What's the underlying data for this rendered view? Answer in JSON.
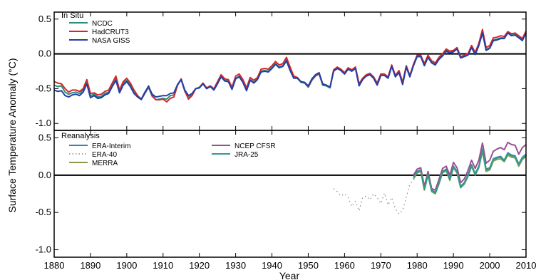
{
  "chart_data": {
    "type": "line",
    "xlabel": "Year",
    "ylabel": "Surface Temperature Anomaly (°C)",
    "xlim": [
      1880,
      2010
    ],
    "x_ticks": [
      1880,
      1890,
      1900,
      1910,
      1920,
      1930,
      1940,
      1950,
      1960,
      1970,
      1980,
      1990,
      2000,
      2010
    ],
    "x_tick_labels": [
      "1880",
      "1890",
      "1900",
      "1910",
      "1920",
      "1930",
      "1940",
      "1950",
      "1960",
      "1970",
      "1980",
      "1990",
      "2000",
      "2010"
    ],
    "panels": [
      {
        "title": "In Situ",
        "ylim": [
          -1.1,
          0.6
        ],
        "y_ticks": [
          -1.0,
          -0.5,
          0.0,
          0.5
        ],
        "y_tick_labels": [
          "-1.0",
          "-0.5",
          "0.0",
          "0.5"
        ],
        "legend_position": "top-left",
        "series": [
          {
            "name": "NCDC",
            "color": "#2a8f7a",
            "start_year": 1880,
            "values": [
              -0.45,
              -0.47,
              -0.46,
              -0.55,
              -0.58,
              -0.56,
              -0.55,
              -0.57,
              -0.52,
              -0.4,
              -0.6,
              -0.58,
              -0.62,
              -0.61,
              -0.57,
              -0.55,
              -0.45,
              -0.35,
              -0.54,
              -0.42,
              -0.38,
              -0.45,
              -0.55,
              -0.62,
              -0.66,
              -0.57,
              -0.48,
              -0.61,
              -0.66,
              -0.65,
              -0.64,
              -0.65,
              -0.6,
              -0.59,
              -0.45,
              -0.37,
              -0.54,
              -0.63,
              -0.58,
              -0.5,
              -0.49,
              -0.43,
              -0.5,
              -0.47,
              -0.51,
              -0.42,
              -0.32,
              -0.38,
              -0.39,
              -0.5,
              -0.35,
              -0.32,
              -0.4,
              -0.52,
              -0.37,
              -0.41,
              -0.36,
              -0.25,
              -0.24,
              -0.25,
              -0.2,
              -0.14,
              -0.19,
              -0.17,
              -0.08,
              -0.22,
              -0.34,
              -0.35,
              -0.41,
              -0.42,
              -0.48,
              -0.38,
              -0.32,
              -0.29,
              -0.45,
              -0.46,
              -0.49,
              -0.24,
              -0.2,
              -0.23,
              -0.28,
              -0.21,
              -0.24,
              -0.2,
              -0.45,
              -0.36,
              -0.31,
              -0.29,
              -0.34,
              -0.44,
              -0.3,
              -0.3,
              -0.34,
              -0.17,
              -0.32,
              -0.26,
              -0.43,
              -0.18,
              -0.32,
              -0.16,
              -0.03,
              -0.03,
              -0.16,
              -0.04,
              -0.12,
              -0.15,
              -0.07,
              -0.02,
              0.05,
              0.02,
              0.04,
              0.08,
              -0.05,
              -0.03,
              -0.01,
              0.1,
              0.0,
              0.13,
              0.32,
              0.06,
              0.09,
              0.2,
              0.21,
              0.23,
              0.23,
              0.31,
              0.27,
              0.28,
              0.24,
              0.2,
              0.3
            ]
          },
          {
            "name": "HadCRUT3",
            "color": "#d62728",
            "start_year": 1880,
            "values": [
              -0.4,
              -0.42,
              -0.43,
              -0.5,
              -0.55,
              -0.52,
              -0.52,
              -0.54,
              -0.5,
              -0.37,
              -0.57,
              -0.56,
              -0.59,
              -0.58,
              -0.54,
              -0.52,
              -0.42,
              -0.32,
              -0.52,
              -0.4,
              -0.35,
              -0.42,
              -0.52,
              -0.6,
              -0.65,
              -0.56,
              -0.46,
              -0.6,
              -0.66,
              -0.66,
              -0.65,
              -0.69,
              -0.64,
              -0.62,
              -0.45,
              -0.36,
              -0.53,
              -0.65,
              -0.6,
              -0.5,
              -0.48,
              -0.42,
              -0.49,
              -0.46,
              -0.5,
              -0.4,
              -0.3,
              -0.36,
              -0.37,
              -0.48,
              -0.32,
              -0.29,
              -0.37,
              -0.49,
              -0.34,
              -0.38,
              -0.34,
              -0.22,
              -0.21,
              -0.22,
              -0.17,
              -0.11,
              -0.16,
              -0.14,
              -0.05,
              -0.19,
              -0.32,
              -0.34,
              -0.4,
              -0.41,
              -0.47,
              -0.37,
              -0.31,
              -0.28,
              -0.43,
              -0.45,
              -0.48,
              -0.23,
              -0.19,
              -0.22,
              -0.27,
              -0.2,
              -0.23,
              -0.19,
              -0.43,
              -0.35,
              -0.3,
              -0.28,
              -0.33,
              -0.42,
              -0.29,
              -0.29,
              -0.33,
              -0.16,
              -0.31,
              -0.24,
              -0.41,
              -0.17,
              -0.31,
              -0.15,
              -0.02,
              -0.02,
              -0.14,
              -0.02,
              -0.1,
              -0.13,
              -0.05,
              0.0,
              0.07,
              0.04,
              0.05,
              0.09,
              -0.04,
              -0.02,
              0.0,
              0.12,
              0.02,
              0.15,
              0.35,
              0.09,
              0.12,
              0.23,
              0.24,
              0.26,
              0.25,
              0.32,
              0.29,
              0.3,
              0.26,
              0.22,
              0.33
            ]
          },
          {
            "name": "NASA GISS",
            "color": "#1f3fa8",
            "start_year": 1880,
            "values": [
              -0.52,
              -0.54,
              -0.53,
              -0.6,
              -0.62,
              -0.59,
              -0.58,
              -0.6,
              -0.55,
              -0.43,
              -0.63,
              -0.6,
              -0.64,
              -0.63,
              -0.59,
              -0.57,
              -0.47,
              -0.38,
              -0.56,
              -0.45,
              -0.4,
              -0.47,
              -0.57,
              -0.62,
              -0.65,
              -0.55,
              -0.47,
              -0.58,
              -0.62,
              -0.61,
              -0.6,
              -0.6,
              -0.57,
              -0.56,
              -0.44,
              -0.37,
              -0.52,
              -0.6,
              -0.57,
              -0.5,
              -0.49,
              -0.43,
              -0.5,
              -0.47,
              -0.52,
              -0.43,
              -0.33,
              -0.39,
              -0.4,
              -0.51,
              -0.36,
              -0.33,
              -0.41,
              -0.53,
              -0.38,
              -0.42,
              -0.37,
              -0.26,
              -0.25,
              -0.26,
              -0.21,
              -0.15,
              -0.2,
              -0.18,
              -0.1,
              -0.24,
              -0.35,
              -0.35,
              -0.4,
              -0.41,
              -0.46,
              -0.36,
              -0.3,
              -0.27,
              -0.44,
              -0.45,
              -0.48,
              -0.25,
              -0.21,
              -0.24,
              -0.29,
              -0.22,
              -0.25,
              -0.21,
              -0.46,
              -0.37,
              -0.32,
              -0.3,
              -0.35,
              -0.45,
              -0.31,
              -0.31,
              -0.35,
              -0.18,
              -0.33,
              -0.27,
              -0.44,
              -0.19,
              -0.33,
              -0.17,
              -0.04,
              -0.04,
              -0.17,
              -0.05,
              -0.13,
              -0.16,
              -0.08,
              -0.03,
              0.04,
              0.01,
              0.03,
              0.07,
              -0.06,
              -0.04,
              -0.02,
              0.09,
              -0.01,
              0.12,
              0.3,
              0.05,
              0.08,
              0.19,
              0.2,
              0.22,
              0.22,
              0.3,
              0.26,
              0.27,
              0.23,
              0.19,
              0.3
            ]
          }
        ]
      },
      {
        "title": "Reanalysis",
        "ylim": [
          -1.1,
          0.6
        ],
        "y_ticks": [
          -1.0,
          -0.5,
          0.0,
          0.5
        ],
        "y_tick_labels": [
          "-1.0",
          "-0.5",
          "0.0",
          "0.5"
        ],
        "legend_position": "top-left",
        "series": [
          {
            "name": "ERA-Interim",
            "color": "#3d7fb0",
            "start_year": 1979,
            "values": [
              -0.02,
              0.05,
              0.07,
              -0.18,
              0.02,
              -0.2,
              -0.23,
              -0.1,
              0.05,
              0.08,
              -0.05,
              0.12,
              0.05,
              -0.15,
              -0.1,
              0.0,
              0.14,
              0.02,
              0.12,
              0.35,
              0.08,
              0.1,
              0.22,
              0.24,
              0.25,
              0.2,
              0.3,
              0.27,
              0.26,
              0.15,
              0.24,
              0.28
            ]
          },
          {
            "name": "ERA-40",
            "color": "#8a8a8a",
            "dashed": true,
            "start_year": 1957,
            "values": [
              -0.18,
              -0.22,
              -0.28,
              -0.25,
              -0.3,
              -0.42,
              -0.35,
              -0.48,
              -0.3,
              -0.28,
              -0.33,
              -0.25,
              -0.3,
              -0.38,
              -0.24,
              -0.4,
              -0.3,
              -0.45,
              -0.52,
              -0.47,
              -0.3,
              -0.12,
              -0.07,
              0.02,
              0.06,
              -0.19,
              0.0,
              -0.21,
              -0.24,
              -0.11,
              0.03,
              0.06,
              -0.07,
              0.1,
              0.03,
              -0.16,
              -0.12,
              -0.02,
              0.12,
              0.0,
              0.1,
              0.33,
              0.06
            ]
          },
          {
            "name": "MERRA",
            "color": "#8a9a4a",
            "start_year": 1979,
            "values": [
              -0.05,
              0.03,
              0.05,
              -0.2,
              0.0,
              -0.22,
              -0.25,
              -0.12,
              0.03,
              0.06,
              -0.07,
              0.1,
              0.03,
              -0.17,
              -0.12,
              -0.02,
              0.12,
              0.0,
              0.1,
              0.32,
              0.05,
              0.07,
              0.19,
              0.21,
              0.22,
              0.18,
              0.27,
              0.24,
              0.23,
              0.12,
              0.21,
              0.25
            ]
          },
          {
            "name": "NCEP CFSR",
            "color": "#9b4f8f",
            "start_year": 1979,
            "values": [
              0.0,
              0.08,
              0.1,
              -0.15,
              0.05,
              -0.18,
              -0.2,
              -0.06,
              0.09,
              0.12,
              0.0,
              0.17,
              0.1,
              -0.1,
              -0.05,
              0.06,
              0.2,
              0.09,
              0.2,
              0.43,
              0.16,
              0.2,
              0.32,
              0.35,
              0.37,
              0.34,
              0.44,
              0.41,
              0.4,
              0.28,
              0.37,
              0.41
            ]
          },
          {
            "name": "JRA-25",
            "color": "#2e9c8c",
            "start_year": 1979,
            "values": [
              -0.03,
              0.04,
              0.06,
              -0.19,
              0.01,
              -0.21,
              -0.24,
              -0.11,
              0.04,
              0.07,
              -0.06,
              0.11,
              0.04,
              -0.16,
              -0.11,
              -0.01,
              0.13,
              0.01,
              0.11,
              0.34,
              0.07,
              0.09,
              0.21,
              0.23,
              0.24,
              0.19,
              0.29,
              0.26,
              0.25,
              0.14,
              0.23,
              0.27
            ]
          }
        ]
      }
    ]
  }
}
